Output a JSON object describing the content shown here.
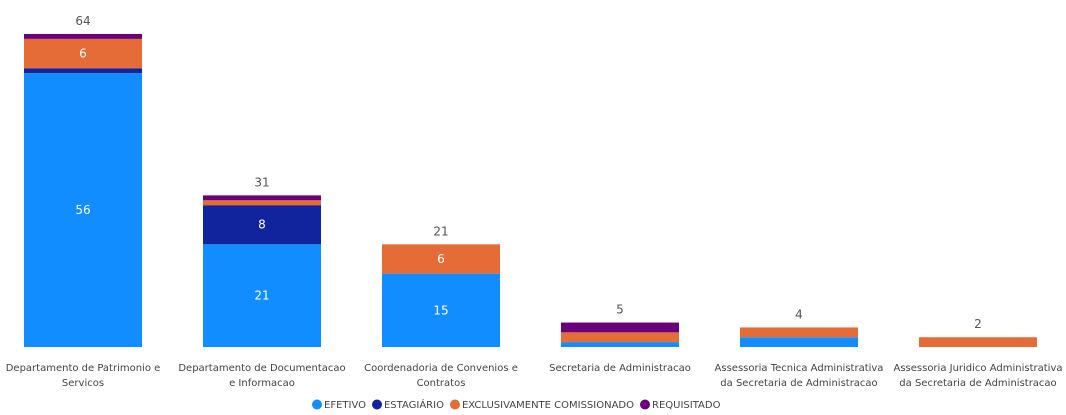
{
  "chart_data": {
    "type": "bar",
    "stacked": true,
    "title": "",
    "xlabel": "",
    "ylabel": "",
    "categories": [
      [
        "Departamento de Patrimonio e",
        "Servicos"
      ],
      [
        "Departamento de Documentacao",
        "e Informacao"
      ],
      [
        "Coordenadoria de Convenios e",
        "Contratos"
      ],
      [
        "Secretaria de Administracao"
      ],
      [
        "Assessoria Tecnica Administrativa",
        "da Secretaria de Administracao"
      ],
      [
        "Assessoria Juridico Administrativa",
        "da Secretaria de Administracao"
      ]
    ],
    "series": [
      {
        "name": "EFETIVO",
        "color": "#118DFF",
        "values": [
          56,
          21,
          15,
          1,
          2,
          0
        ]
      },
      {
        "name": "ESTAGIÁRIO",
        "color": "#12239E",
        "values": [
          1,
          8,
          0,
          0,
          0,
          0
        ]
      },
      {
        "name": "EXCLUSIVAMENTE COMISSIONADO",
        "color": "#E66C37",
        "values": [
          6,
          1,
          6,
          2,
          2,
          2
        ]
      },
      {
        "name": "REQUISITADO",
        "color": "#6B007B",
        "values": [
          1,
          1,
          0,
          2,
          0,
          0
        ]
      }
    ],
    "totals": [
      64,
      31,
      21,
      5,
      4,
      2
    ],
    "segment_labels": [
      {
        "category": 0,
        "series": 0,
        "text": "56"
      },
      {
        "category": 0,
        "series": 2,
        "text": "6"
      },
      {
        "category": 1,
        "series": 0,
        "text": "21"
      },
      {
        "category": 1,
        "series": 1,
        "text": "8"
      },
      {
        "category": 2,
        "series": 0,
        "text": "15"
      },
      {
        "category": 2,
        "series": 2,
        "text": "6"
      }
    ],
    "ylim": [
      0,
      64
    ],
    "grid": false,
    "legend_position": "bottom"
  }
}
